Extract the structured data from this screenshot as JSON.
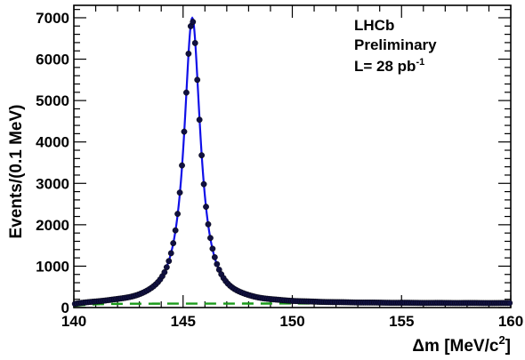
{
  "chart_data": {
    "type": "scatter",
    "title": "",
    "xlabel": "Δm [MeV/c²]",
    "xlabel_parts": {
      "main": "Δm [MeV/c",
      "sup": "2",
      "end": "]"
    },
    "ylabel": "Events/(0.1 MeV)",
    "xlim": [
      140,
      160
    ],
    "ylim": [
      0,
      7300
    ],
    "x_ticks": [
      140,
      145,
      150,
      155,
      160
    ],
    "x_tick_labels": [
      "140",
      "145",
      "150",
      "155",
      "160"
    ],
    "y_ticks": [
      0,
      1000,
      2000,
      3000,
      4000,
      5000,
      6000,
      7000
    ],
    "y_tick_labels": [
      "0",
      "1000",
      "2000",
      "3000",
      "4000",
      "5000",
      "6000",
      "7000"
    ],
    "grid": false,
    "annotations": {
      "experiment": "LHCb",
      "status": "Preliminary",
      "luminosity_main": "L= 28 pb",
      "luminosity_sup": "-1"
    },
    "fit_model": {
      "peak_center": 145.42,
      "peak_height": 6900,
      "peak_width": 0.45,
      "background_level": 95
    },
    "series": [
      {
        "style": "data points (black markers)",
        "fill": "#101040"
      },
      {
        "style": "total fit (solid blue curve)",
        "color": "#1010e8"
      },
      {
        "style": "background (dashed green line)",
        "color": "#1a9a1a"
      }
    ]
  }
}
